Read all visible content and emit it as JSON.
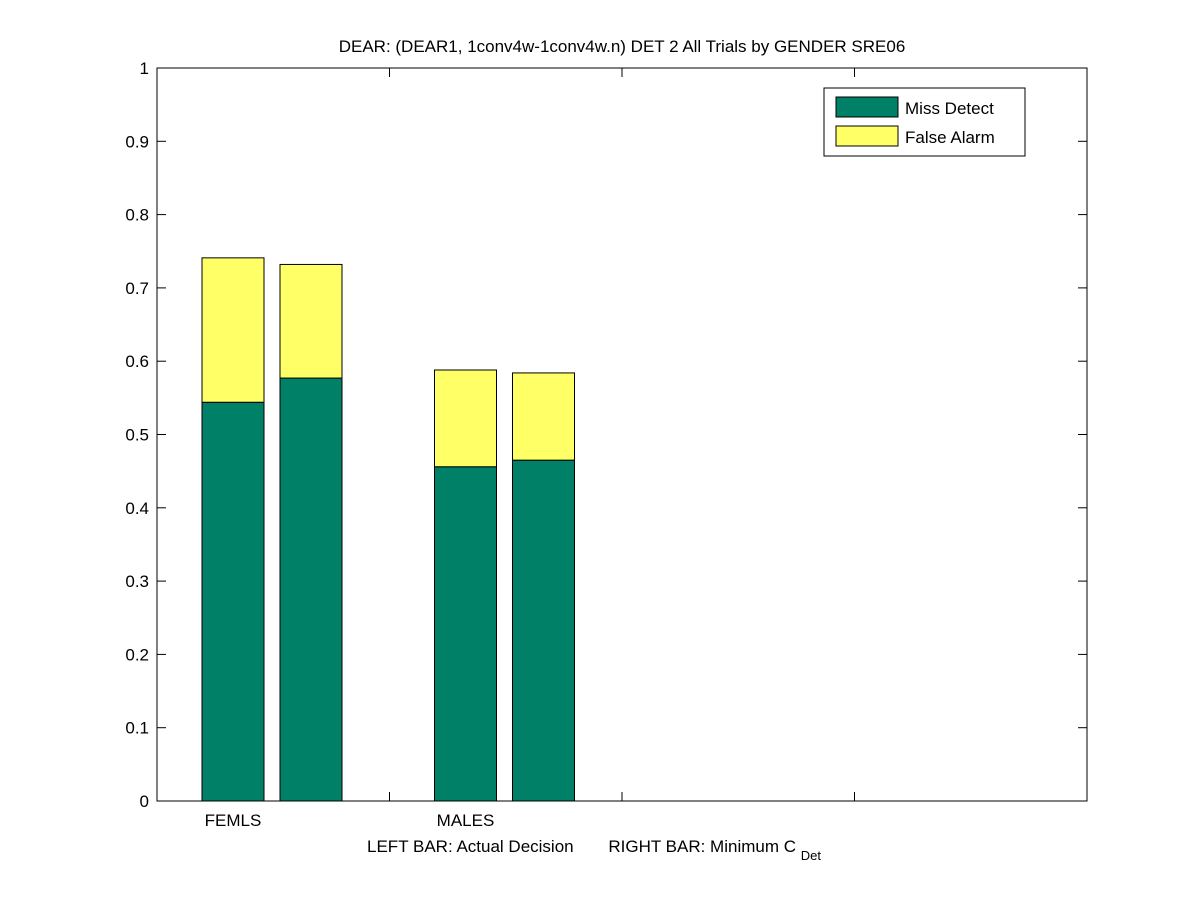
{
  "chart_data": {
    "type": "bar",
    "stacked": true,
    "title": "DEAR: (DEAR1, 1conv4w-1conv4w.n) DET 2 All Trials by GENDER SRE06",
    "xlabel_parts": {
      "left": "LEFT BAR: Actual Decision",
      "right": "RIGHT BAR: Minimum C",
      "right_sub": "Det"
    },
    "ylim": [
      0,
      1
    ],
    "y_ticks": [
      "0",
      "0.1",
      "0.2",
      "0.3",
      "0.4",
      "0.5",
      "0.6",
      "0.7",
      "0.8",
      "0.9",
      "1"
    ],
    "group_labels": [
      "FEMLS",
      "MALES"
    ],
    "bar_labels": [
      "Actual Decision",
      "Minimum C_Det"
    ],
    "series": [
      {
        "name": "Miss Detect",
        "color": "#008066",
        "values": [
          [
            0.544,
            0.577
          ],
          [
            0.456,
            0.465
          ]
        ]
      },
      {
        "name": "False Alarm",
        "color": "#ffff66",
        "values": [
          [
            0.197,
            0.155
          ],
          [
            0.132,
            0.119
          ]
        ]
      }
    ],
    "legend_position": "top-right",
    "grid": false
  }
}
